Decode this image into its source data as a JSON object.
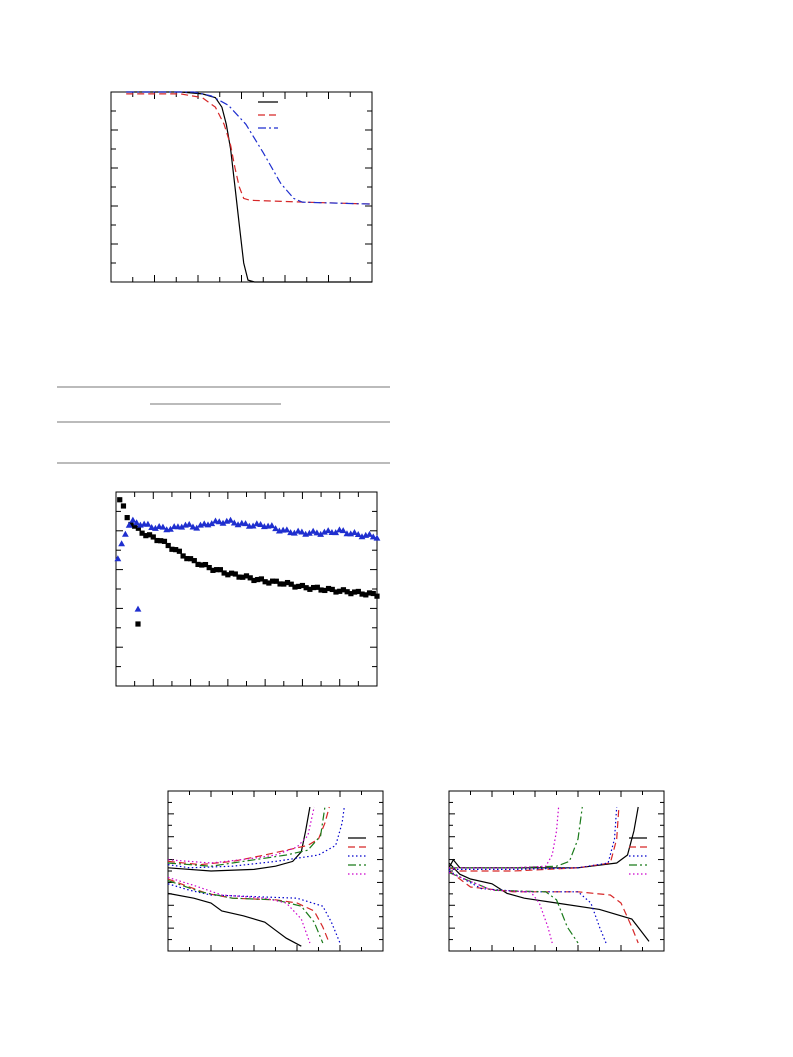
{
  "page": {
    "background": "#ffffff"
  },
  "chart_data": [
    {
      "id": "chart1",
      "type": "line",
      "title": "",
      "xlabel": "",
      "ylabel": "",
      "xlim": [
        0,
        6
      ],
      "ylim": [
        0,
        1
      ],
      "x_minor_ticks": 12,
      "y_minor_ticks": 10,
      "grid": false,
      "legend": {
        "placement": "top-right",
        "entries": 3
      },
      "series": [
        {
          "color": "#000000",
          "dash": "solid",
          "points": [
            [
              0.35,
              1.0
            ],
            [
              1.6,
              1.0
            ],
            [
              2.1,
              0.99
            ],
            [
              2.4,
              0.97
            ],
            [
              2.55,
              0.92
            ],
            [
              2.65,
              0.83
            ],
            [
              2.75,
              0.7
            ],
            [
              2.85,
              0.5
            ],
            [
              2.95,
              0.3
            ],
            [
              3.05,
              0.1
            ],
            [
              3.15,
              0.01
            ],
            [
              3.3,
              0.0
            ],
            [
              6.0,
              0.0
            ]
          ]
        },
        {
          "color": "#d62728",
          "dash": "dashed",
          "points": [
            [
              0.35,
              0.99
            ],
            [
              1.6,
              0.99
            ],
            [
              2.1,
              0.97
            ],
            [
              2.4,
              0.92
            ],
            [
              2.6,
              0.83
            ],
            [
              2.75,
              0.72
            ],
            [
              2.85,
              0.6
            ],
            [
              2.95,
              0.5
            ],
            [
              3.05,
              0.44
            ],
            [
              3.2,
              0.43
            ],
            [
              4.5,
              0.42
            ],
            [
              6.0,
              0.41
            ]
          ]
        },
        {
          "color": "#1f2fcf",
          "dash": "dashdot",
          "points": [
            [
              0.35,
              1.0
            ],
            [
              1.9,
              1.0
            ],
            [
              2.3,
              0.98
            ],
            [
              2.7,
              0.93
            ],
            [
              3.1,
              0.83
            ],
            [
              3.5,
              0.68
            ],
            [
              3.9,
              0.52
            ],
            [
              4.2,
              0.44
            ],
            [
              4.4,
              0.42
            ],
            [
              6.0,
              0.41
            ]
          ]
        }
      ]
    },
    {
      "id": "chart2",
      "type": "scatter",
      "title": "",
      "xlabel": "",
      "ylabel": "",
      "xlim": [
        0,
        70
      ],
      "ylim": [
        0,
        1.0
      ],
      "x_minor_ticks": 14,
      "y_minor_ticks": 10,
      "grid": false,
      "legend": {
        "placement": "bottom-left",
        "entries": 2
      },
      "series": [
        {
          "marker": "square",
          "color": "#000000",
          "n": 70,
          "anchors": [
            [
              1,
              0.96
            ],
            [
              2,
              0.92
            ],
            [
              3,
              0.87
            ],
            [
              4,
              0.84
            ],
            [
              5,
              0.82
            ],
            [
              8,
              0.78
            ],
            [
              12,
              0.75
            ],
            [
              16,
              0.7
            ],
            [
              20,
              0.65
            ],
            [
              25,
              0.61
            ],
            [
              30,
              0.58
            ],
            [
              35,
              0.56
            ],
            [
              40,
              0.54
            ],
            [
              45,
              0.53
            ],
            [
              50,
              0.51
            ],
            [
              55,
              0.5
            ],
            [
              60,
              0.49
            ],
            [
              65,
              0.48
            ],
            [
              70,
              0.47
            ]
          ]
        },
        {
          "marker": "triangle",
          "color": "#1f2fcf",
          "n": 70,
          "anchors": [
            [
              0.5,
              0.65
            ],
            [
              2,
              0.77
            ],
            [
              3,
              0.81
            ],
            [
              4,
              0.85
            ],
            [
              6,
              0.84
            ],
            [
              10,
              0.82
            ],
            [
              15,
              0.81
            ],
            [
              18,
              0.83
            ],
            [
              22,
              0.82
            ],
            [
              25,
              0.84
            ],
            [
              30,
              0.85
            ],
            [
              35,
              0.83
            ],
            [
              40,
              0.83
            ],
            [
              45,
              0.8
            ],
            [
              50,
              0.79
            ],
            [
              55,
              0.79
            ],
            [
              60,
              0.8
            ],
            [
              65,
              0.78
            ],
            [
              70,
              0.77
            ]
          ]
        }
      ]
    },
    {
      "id": "chart3",
      "type": "line",
      "title": "",
      "xlabel": "",
      "ylabel": "",
      "xlim": [
        0,
        1
      ],
      "ylim": [
        0,
        1
      ],
      "x_minor_ticks": 10,
      "y_minor_ticks": 14,
      "grid": false,
      "legend": {
        "placement": "top-right",
        "entries": 5
      },
      "series": [
        {
          "color": "#000000",
          "dash": "solid",
          "charge": [
            [
              0,
              0.52
            ],
            [
              0.2,
              0.5
            ],
            [
              0.4,
              0.51
            ],
            [
              0.5,
              0.53
            ],
            [
              0.58,
              0.56
            ],
            [
              0.62,
              0.62
            ],
            [
              0.64,
              0.75
            ],
            [
              0.66,
              0.9
            ]
          ],
          "discharge": [
            [
              0,
              0.36
            ],
            [
              0.12,
              0.33
            ],
            [
              0.2,
              0.3
            ],
            [
              0.25,
              0.25
            ],
            [
              0.35,
              0.22
            ],
            [
              0.45,
              0.18
            ],
            [
              0.5,
              0.13
            ],
            [
              0.55,
              0.08
            ],
            [
              0.62,
              0.03
            ]
          ]
        },
        {
          "color": "#d62728",
          "dash": "dashed",
          "charge": [
            [
              0,
              0.56
            ],
            [
              0.15,
              0.54
            ],
            [
              0.3,
              0.56
            ],
            [
              0.45,
              0.6
            ],
            [
              0.55,
              0.63
            ],
            [
              0.65,
              0.66
            ],
            [
              0.7,
              0.7
            ],
            [
              0.73,
              0.8
            ],
            [
              0.75,
              0.9
            ]
          ],
          "discharge": [
            [
              0,
              0.45
            ],
            [
              0.1,
              0.4
            ],
            [
              0.18,
              0.36
            ],
            [
              0.3,
              0.33
            ],
            [
              0.5,
              0.32
            ],
            [
              0.6,
              0.3
            ],
            [
              0.68,
              0.25
            ],
            [
              0.72,
              0.15
            ],
            [
              0.75,
              0.05
            ]
          ]
        },
        {
          "color": "#0000cc",
          "dash": "dotted",
          "charge": [
            [
              0,
              0.54
            ],
            [
              0.1,
              0.52
            ],
            [
              0.3,
              0.53
            ],
            [
              0.5,
              0.56
            ],
            [
              0.7,
              0.6
            ],
            [
              0.78,
              0.66
            ],
            [
              0.81,
              0.8
            ],
            [
              0.82,
              0.9
            ]
          ],
          "discharge": [
            [
              0,
              0.42
            ],
            [
              0.1,
              0.38
            ],
            [
              0.2,
              0.35
            ],
            [
              0.4,
              0.34
            ],
            [
              0.6,
              0.33
            ],
            [
              0.72,
              0.28
            ],
            [
              0.76,
              0.18
            ],
            [
              0.8,
              0.05
            ]
          ]
        },
        {
          "color": "#1a7a1a",
          "dash": "dashdot",
          "charge": [
            [
              0,
              0.55
            ],
            [
              0.2,
              0.53
            ],
            [
              0.4,
              0.57
            ],
            [
              0.55,
              0.6
            ],
            [
              0.65,
              0.63
            ],
            [
              0.71,
              0.72
            ],
            [
              0.73,
              0.9
            ]
          ],
          "discharge": [
            [
              0,
              0.44
            ],
            [
              0.15,
              0.37
            ],
            [
              0.3,
              0.33
            ],
            [
              0.5,
              0.32
            ],
            [
              0.62,
              0.28
            ],
            [
              0.68,
              0.18
            ],
            [
              0.72,
              0.05
            ]
          ]
        },
        {
          "color": "#cc00cc",
          "dash": "dotted",
          "charge": [
            [
              0,
              0.57
            ],
            [
              0.2,
              0.55
            ],
            [
              0.4,
              0.58
            ],
            [
              0.5,
              0.6
            ],
            [
              0.6,
              0.65
            ],
            [
              0.65,
              0.72
            ],
            [
              0.68,
              0.9
            ]
          ],
          "discharge": [
            [
              0,
              0.46
            ],
            [
              0.12,
              0.41
            ],
            [
              0.25,
              0.35
            ],
            [
              0.45,
              0.33
            ],
            [
              0.55,
              0.3
            ],
            [
              0.62,
              0.2
            ],
            [
              0.66,
              0.05
            ]
          ]
        }
      ]
    },
    {
      "id": "chart4",
      "type": "line",
      "title": "",
      "xlabel": "",
      "ylabel": "",
      "xlim": [
        0,
        1
      ],
      "ylim": [
        0,
        1
      ],
      "x_minor_ticks": 10,
      "y_minor_ticks": 14,
      "grid": false,
      "legend": {
        "placement": "top-right",
        "entries": 5
      },
      "series": [
        {
          "color": "#000000",
          "dash": "solid",
          "charge": [
            [
              0,
              0.52
            ],
            [
              0.02,
              0.57
            ],
            [
              0.05,
              0.52
            ],
            [
              0.3,
              0.52
            ],
            [
              0.6,
              0.52
            ],
            [
              0.78,
              0.55
            ],
            [
              0.83,
              0.6
            ],
            [
              0.86,
              0.75
            ],
            [
              0.88,
              0.9
            ]
          ],
          "discharge": [
            [
              0,
              0.55
            ],
            [
              0.05,
              0.48
            ],
            [
              0.1,
              0.45
            ],
            [
              0.2,
              0.42
            ],
            [
              0.27,
              0.36
            ],
            [
              0.35,
              0.33
            ],
            [
              0.5,
              0.3
            ],
            [
              0.7,
              0.26
            ],
            [
              0.85,
              0.2
            ],
            [
              0.93,
              0.06
            ]
          ]
        },
        {
          "color": "#d62728",
          "dash": "dashed",
          "charge": [
            [
              0,
              0.52
            ],
            [
              0.05,
              0.5
            ],
            [
              0.3,
              0.5
            ],
            [
              0.6,
              0.52
            ],
            [
              0.75,
              0.55
            ],
            [
              0.78,
              0.7
            ],
            [
              0.79,
              0.9
            ]
          ],
          "discharge": [
            [
              0,
              0.5
            ],
            [
              0.1,
              0.4
            ],
            [
              0.3,
              0.37
            ],
            [
              0.6,
              0.37
            ],
            [
              0.75,
              0.35
            ],
            [
              0.8,
              0.3
            ],
            [
              0.85,
              0.15
            ],
            [
              0.88,
              0.05
            ]
          ]
        },
        {
          "color": "#0000cc",
          "dash": "dotted",
          "charge": [
            [
              0,
              0.51
            ],
            [
              0.3,
              0.51
            ],
            [
              0.6,
              0.52
            ],
            [
              0.74,
              0.55
            ],
            [
              0.77,
              0.7
            ],
            [
              0.78,
              0.9
            ]
          ],
          "discharge": [
            [
              0,
              0.5
            ],
            [
              0.15,
              0.39
            ],
            [
              0.35,
              0.37
            ],
            [
              0.6,
              0.37
            ],
            [
              0.66,
              0.3
            ],
            [
              0.7,
              0.15
            ],
            [
              0.73,
              0.05
            ]
          ]
        },
        {
          "color": "#1a7a1a",
          "dash": "dashdot",
          "charge": [
            [
              0,
              0.52
            ],
            [
              0.3,
              0.52
            ],
            [
              0.5,
              0.53
            ],
            [
              0.56,
              0.56
            ],
            [
              0.6,
              0.7
            ],
            [
              0.62,
              0.9
            ]
          ],
          "discharge": [
            [
              0,
              0.49
            ],
            [
              0.2,
              0.38
            ],
            [
              0.45,
              0.37
            ],
            [
              0.5,
              0.32
            ],
            [
              0.55,
              0.15
            ],
            [
              0.6,
              0.05
            ]
          ]
        },
        {
          "color": "#cc00cc",
          "dash": "dotted",
          "charge": [
            [
              0,
              0.52
            ],
            [
              0.3,
              0.52
            ],
            [
              0.45,
              0.53
            ],
            [
              0.48,
              0.6
            ],
            [
              0.5,
              0.75
            ],
            [
              0.51,
              0.9
            ]
          ],
          "discharge": [
            [
              0,
              0.49
            ],
            [
              0.2,
              0.38
            ],
            [
              0.38,
              0.37
            ],
            [
              0.42,
              0.3
            ],
            [
              0.46,
              0.15
            ],
            [
              0.48,
              0.05
            ]
          ]
        }
      ]
    }
  ],
  "table": {
    "rule_color": "#777777"
  }
}
